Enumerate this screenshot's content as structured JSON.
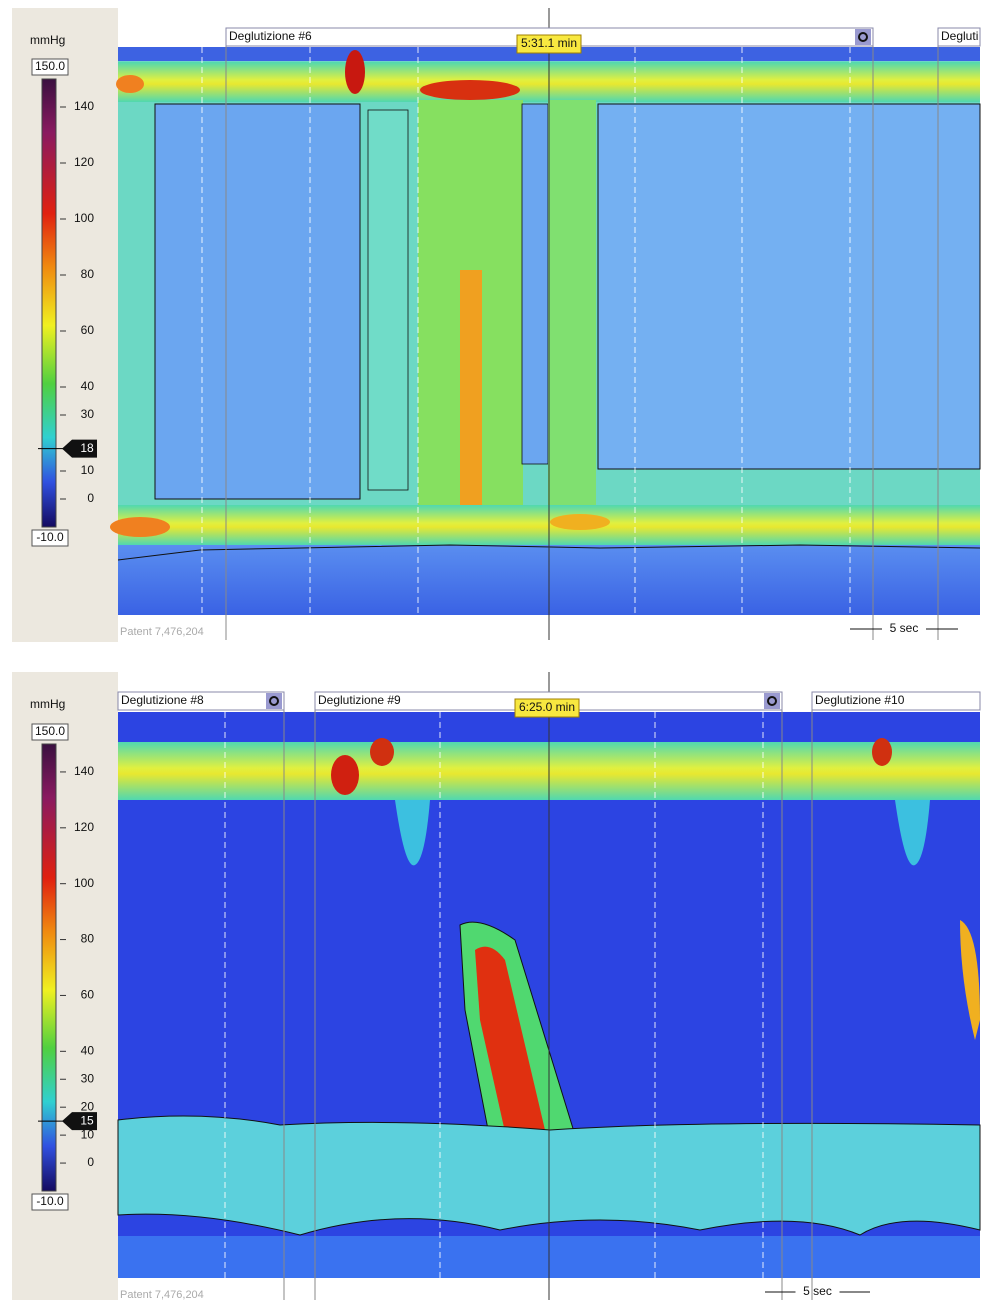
{
  "panels": [
    {
      "unit": "mmHg",
      "scale_max": {
        "value": 150,
        "label": "150.0"
      },
      "scale_min": {
        "value": -10,
        "label": "-10.0"
      },
      "ticks": [
        140,
        120,
        100,
        80,
        60,
        40,
        30,
        10,
        0
      ],
      "marker": 18,
      "swallows": [
        "Deglutizione #6",
        "Degluti"
      ],
      "time": "5:31.1 min",
      "scale_bar": "5 sec",
      "patent": "Patent 7,476,204"
    },
    {
      "unit": "mmHg",
      "scale_max": {
        "value": 150,
        "label": "150.0"
      },
      "scale_min": {
        "value": -10,
        "label": "-10.0"
      },
      "ticks": [
        140,
        120,
        100,
        80,
        60,
        40,
        30,
        20,
        10,
        0
      ],
      "marker": 15,
      "swallows": [
        "Deglutizione #8",
        "Deglutizione #9",
        "Deglutizione #10"
      ],
      "time": "6:25.0 min",
      "scale_bar": "5 sec",
      "patent": "Patent 7,476,204"
    }
  ]
}
